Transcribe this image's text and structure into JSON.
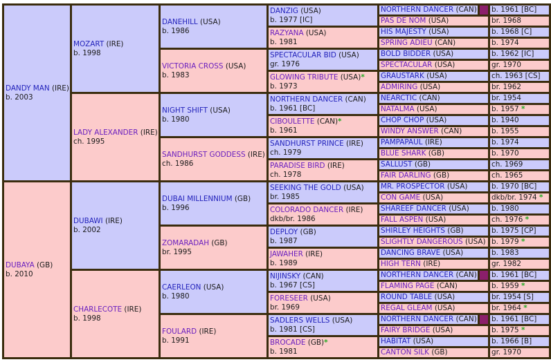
{
  "pedigree": {
    "subject_sire_line": {
      "gen1": {
        "name": "DANDY MAN",
        "country": "(IRE)",
        "info": "b. 2003"
      },
      "gen2": [
        {
          "name": "MOZART",
          "country": "(IRE)",
          "info": "b. 1998"
        },
        {
          "name": "LADY ALEXANDER",
          "country": "(IRE)",
          "info": "ch. 1995"
        }
      ],
      "gen3": [
        {
          "name": "DANEHILL",
          "country": "(USA)",
          "info": "b. 1986"
        },
        {
          "name": "VICTORIA CROSS",
          "country": "(USA)",
          "info": "b. 1983"
        },
        {
          "name": "NIGHT SHIFT",
          "country": "(USA)",
          "info": "b. 1980"
        },
        {
          "name": "SANDHURST GODDESS",
          "country": "(IRE)",
          "info": "ch. 1986"
        }
      ]
    },
    "subject_dam_line": {
      "gen1": {
        "name": "DUBAYA",
        "country": "(GB)",
        "info": "b. 2010"
      },
      "gen2": [
        {
          "name": "DUBAWI",
          "country": "(IRE)",
          "info": "b. 2002"
        },
        {
          "name": "CHARLECOTE",
          "country": "(IRE)",
          "info": "b. 1998"
        }
      ],
      "gen3": [
        {
          "name": "DUBAI MILLENNIUM",
          "country": "(GB)",
          "info": "b. 1996"
        },
        {
          "name": "ZOMARADAH",
          "country": "(GB)",
          "info": "br. 1995"
        },
        {
          "name": "CAERLEON",
          "country": "(USA)",
          "info": "b. 1980"
        },
        {
          "name": "FOULARD",
          "country": "(IRE)",
          "info": "b. 1991"
        }
      ]
    },
    "gen4": [
      {
        "name": "DANZIG",
        "country": "(USA)",
        "info": "b. 1977 [IC]",
        "star": ""
      },
      {
        "name": "RAZYANA",
        "country": "(USA)",
        "info": "b. 1981",
        "star": ""
      },
      {
        "name": "SPECTACULAR BID",
        "country": "(USA)",
        "info": "gr. 1976",
        "star": ""
      },
      {
        "name": "GLOWING TRIBUTE",
        "country": "(USA)",
        "info": "b. 1973",
        "star": "*"
      },
      {
        "name": "NORTHERN DANCER",
        "country": "(CAN)",
        "info": "b. 1961 [BC]",
        "star": ""
      },
      {
        "name": "CIBOULETTE",
        "country": "(CAN)",
        "info": "b. 1961",
        "star": "*"
      },
      {
        "name": "SANDHURST PRINCE",
        "country": "(IRE)",
        "info": "ch. 1979",
        "star": ""
      },
      {
        "name": "PARADISE BIRD",
        "country": "(IRE)",
        "info": "ch. 1978",
        "star": ""
      },
      {
        "name": "SEEKING THE GOLD",
        "country": "(USA)",
        "info": "br. 1985",
        "star": ""
      },
      {
        "name": "COLORADO DANCER",
        "country": "(IRE)",
        "info": "dkb/br. 1986",
        "star": ""
      },
      {
        "name": "DEPLOY",
        "country": "(GB)",
        "info": "b. 1987",
        "star": ""
      },
      {
        "name": "JAWAHER",
        "country": "(IRE)",
        "info": "b. 1989",
        "star": ""
      },
      {
        "name": "NIJINSKY",
        "country": "(CAN)",
        "info": "b. 1967 [CS]",
        "star": ""
      },
      {
        "name": "FORESEER",
        "country": "(USA)",
        "info": "br. 1969",
        "star": ""
      },
      {
        "name": "SADLERS WELLS",
        "country": "(USA)",
        "info": "b. 1981 [CS]",
        "star": ""
      },
      {
        "name": "BROCADE",
        "country": "(GB)",
        "info": "b. 1981",
        "star": "*"
      }
    ],
    "gen5": [
      {
        "name": "NORTHERN DANCER",
        "country": "(CAN)",
        "info": "b. 1961 [BC]",
        "star": ""
      },
      {
        "name": "PAS DE NOM",
        "country": "(USA)",
        "info": "br. 1968",
        "star": ""
      },
      {
        "name": "HIS MAJESTY",
        "country": "(USA)",
        "info": "b. 1968 [C]",
        "star": ""
      },
      {
        "name": "SPRING ADIEU",
        "country": "(CAN)",
        "info": "b. 1974",
        "star": ""
      },
      {
        "name": "BOLD BIDDER",
        "country": "(USA)",
        "info": "b. 1962 [IC]",
        "star": ""
      },
      {
        "name": "SPECTACULAR",
        "country": "(USA)",
        "info": "gr. 1970",
        "star": ""
      },
      {
        "name": "GRAUSTARK",
        "country": "(USA)",
        "info": "ch. 1963 [CS]",
        "star": ""
      },
      {
        "name": "ADMIRING",
        "country": "(USA)",
        "info": "br. 1962",
        "star": ""
      },
      {
        "name": "NEARCTIC",
        "country": "(CAN)",
        "info": "br. 1954",
        "star": ""
      },
      {
        "name": "NATALMA",
        "country": "(USA)",
        "info": "b. 1957",
        "star": "*"
      },
      {
        "name": "CHOP CHOP",
        "country": "(USA)",
        "info": "b. 1940",
        "star": ""
      },
      {
        "name": "WINDY ANSWER",
        "country": "(CAN)",
        "info": "b. 1955",
        "star": ""
      },
      {
        "name": "PAMPAPAUL",
        "country": "(IRE)",
        "info": "b. 1974",
        "star": ""
      },
      {
        "name": "BLUE SHARK",
        "country": "(GB)",
        "info": "b. 1970",
        "star": ""
      },
      {
        "name": "SALLUST",
        "country": "(GB)",
        "info": "ch. 1969",
        "star": ""
      },
      {
        "name": "FAIR DARLING",
        "country": "(GB)",
        "info": "ch. 1965",
        "star": ""
      },
      {
        "name": "MR. PROSPECTOR",
        "country": "(USA)",
        "info": "b. 1970 [BC]",
        "star": ""
      },
      {
        "name": "CON GAME",
        "country": "(USA)",
        "info": "dkb/br. 1974",
        "star": "*"
      },
      {
        "name": "SHAREEF DANCER",
        "country": "(USA)",
        "info": "b. 1980",
        "star": ""
      },
      {
        "name": "FALL ASPEN",
        "country": "(USA)",
        "info": "ch. 1976",
        "star": "*"
      },
      {
        "name": "SHIRLEY HEIGHTS",
        "country": "(GB)",
        "info": "b. 1975 [CP]",
        "star": ""
      },
      {
        "name": "SLIGHTLY DANGEROUS",
        "country": "(USA)",
        "info": "b. 1979",
        "star": "*"
      },
      {
        "name": "DANCING BRAVE",
        "country": "(USA)",
        "info": "b. 1983",
        "star": ""
      },
      {
        "name": "HIGH TERN",
        "country": "(IRE)",
        "info": "gr. 1982",
        "star": ""
      },
      {
        "name": "NORTHERN DANCER",
        "country": "(CAN)",
        "info": "b. 1961 [BC]",
        "star": ""
      },
      {
        "name": "FLAMING PAGE",
        "country": "(CAN)",
        "info": "b. 1959",
        "star": "*"
      },
      {
        "name": "ROUND TABLE",
        "country": "(USA)",
        "info": "br. 1954 [S]",
        "star": ""
      },
      {
        "name": "REGAL GLEAM",
        "country": "(USA)",
        "info": "br. 1964",
        "star": "*"
      },
      {
        "name": "NORTHERN DANCER",
        "country": "(CAN)",
        "info": "b. 1961 [BC]",
        "star": ""
      },
      {
        "name": "FAIRY BRIDGE",
        "country": "(USA)",
        "info": "b. 1975",
        "star": "*"
      },
      {
        "name": "HABITAT",
        "country": "(USA)",
        "info": "b. 1966 [B]",
        "star": ""
      },
      {
        "name": "CANTON SILK",
        "country": "(GB)",
        "info": "gr. 1970",
        "star": ""
      }
    ]
  },
  "colors": {
    "male_bg": "#cbcbfb",
    "female_bg": "#fccbcb",
    "border": "#3a2c0e",
    "inbreeding_marker": "#8b1f6a",
    "star": "#22aa22"
  }
}
